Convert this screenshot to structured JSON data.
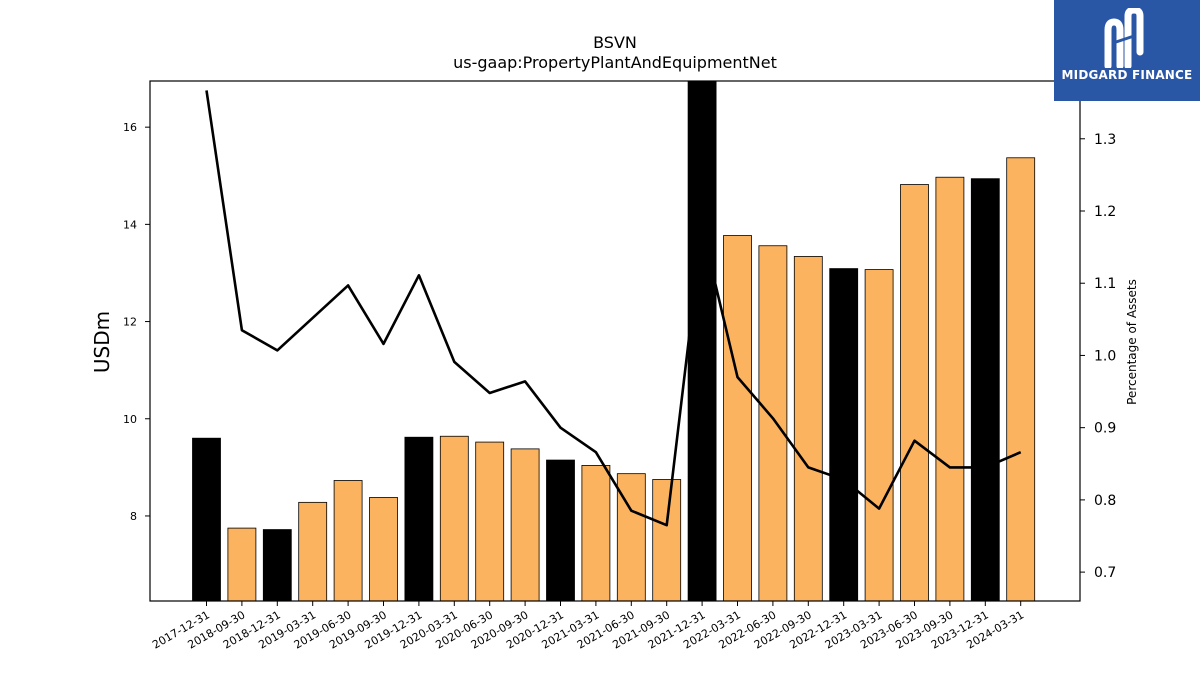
{
  "chart_data": {
    "type": "bar",
    "title": "BSVN",
    "subtitle": "us-gaap:PropertyPlantAndEquipmentNet",
    "ylabel": "USDm",
    "y2label": "Percentage of Assets",
    "ylim": [
      6.25,
      16.95
    ],
    "y2lim": [
      0.66,
      1.38
    ],
    "yticks": [
      8,
      10,
      12,
      14,
      16
    ],
    "y2ticks": [
      0.7,
      0.8,
      0.9,
      1.0,
      1.1,
      1.2,
      1.3
    ],
    "categories": [
      "2017-12-31",
      "2018-09-30",
      "2018-12-31",
      "2019-03-31",
      "2019-06-30",
      "2019-09-30",
      "2019-12-31",
      "2020-03-31",
      "2020-06-30",
      "2020-09-30",
      "2020-12-31",
      "2021-03-31",
      "2021-06-30",
      "2021-09-30",
      "2021-12-31",
      "2022-03-31",
      "2022-06-30",
      "2022-09-30",
      "2022-12-31",
      "2023-03-31",
      "2023-06-30",
      "2023-09-30",
      "2023-12-31",
      "2024-03-31"
    ],
    "series": [
      {
        "kind": "bar",
        "values": [
          9.6,
          7.75,
          7.72,
          8.28,
          8.73,
          8.38,
          9.62,
          9.64,
          9.52,
          9.38,
          9.15,
          9.04,
          8.87,
          8.75,
          16.95,
          13.77,
          13.56,
          13.34,
          13.09,
          13.07,
          14.82,
          14.97,
          14.94,
          15.37
        ],
        "colors": [
          "#000000",
          "#fbb360",
          "#000000",
          "#fbb360",
          "#fbb360",
          "#fbb360",
          "#000000",
          "#fbb360",
          "#fbb360",
          "#fbb360",
          "#000000",
          "#fbb360",
          "#fbb360",
          "#fbb360",
          "#000000",
          "#fbb360",
          "#fbb360",
          "#fbb360",
          "#000000",
          "#fbb360",
          "#fbb360",
          "#fbb360",
          "#000000",
          "#fbb360"
        ]
      },
      {
        "kind": "line",
        "axis": "right",
        "color": "#000000",
        "values": [
          1.367,
          1.035,
          1.007,
          1.052,
          1.097,
          1.016,
          1.111,
          0.991,
          0.948,
          0.964,
          0.9,
          0.866,
          0.785,
          0.765,
          1.176,
          0.97,
          0.913,
          0.845,
          0.828,
          0.788,
          0.882,
          0.845,
          0.845,
          0.866
        ]
      }
    ],
    "legend": "none",
    "grid": false
  },
  "logo": {
    "text": "MIDGARD FINANCE",
    "bg": "#2a56a6"
  }
}
